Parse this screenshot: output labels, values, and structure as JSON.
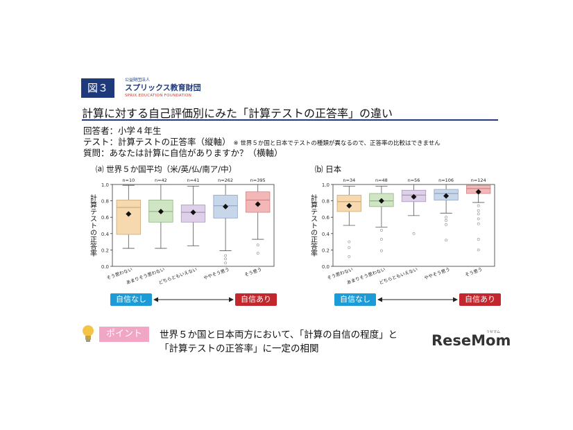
{
  "figure_badge": "図３",
  "org": {
    "small": "公益財団法人",
    "name": "スプリックス教育財団",
    "english": "SPRIX EDUCATION FOUNDATION"
  },
  "title": "計算に対する自己評価別にみた「計算テストの正答率」の違い",
  "meta": {
    "respondents": "回答者：小学４年生",
    "test": "テスト：計算テストの正答率（縦軸）",
    "test_note": "※ 世界５か国と日本でテストの種類が異なるので、正答率の比較はできません",
    "question": "質問：あなたは計算に自信がありますか？（横軸）"
  },
  "scale": {
    "low_label": "自信なし",
    "high_label": "自信あり"
  },
  "point": {
    "badge": "ポイント",
    "line1": "世界５か国と日本両方において、「計算の自信の程度」と",
    "line2": "「計算テストの正答率」に一定の相関"
  },
  "logo": {
    "text": "ReseMom",
    "sub": "リセマム"
  },
  "colors": {
    "navy": "#1f3a7a",
    "low": "#1d9bd6",
    "high": "#c1272d",
    "box_fills": [
      "#f7d9b0",
      "#cfe5c4",
      "#ddd0e8",
      "#c8d6ea",
      "#f3b7b7"
    ],
    "box_edges": [
      "#c9a87a",
      "#8fb382",
      "#a996bd",
      "#8ea3c4",
      "#cc8585"
    ]
  },
  "chart_data": [
    {
      "type": "box",
      "title": "⒜ 世界５か国平均（米/英/仏/南ア/中）",
      "ylabel": "計算テストの正答率",
      "ylim": [
        0,
        1.0
      ],
      "yticks": [
        "0.0",
        "0.2",
        "0.4",
        "0.6",
        "0.8",
        "1.0"
      ],
      "categories": [
        "そう思わない",
        "あまりそう思わない",
        "どちらともいえない",
        "ややそう思う",
        "そう思う"
      ],
      "n_labels": [
        "n=10",
        "n=42",
        "n=41",
        "n=262",
        "n=395"
      ],
      "boxes": [
        {
          "whislo": 0.22,
          "q1": 0.39,
          "med": 0.72,
          "q3": 0.81,
          "whishi": 0.99,
          "mean": 0.64,
          "fliers": []
        },
        {
          "whislo": 0.22,
          "q1": 0.54,
          "med": 0.67,
          "q3": 0.81,
          "whishi": 1.0,
          "mean": 0.67,
          "fliers": []
        },
        {
          "whislo": 0.25,
          "q1": 0.54,
          "med": 0.66,
          "q3": 0.75,
          "whishi": 0.98,
          "mean": 0.66,
          "fliers": []
        },
        {
          "whislo": 0.19,
          "q1": 0.59,
          "med": 0.74,
          "q3": 0.87,
          "whishi": 1.0,
          "mean": 0.73,
          "fliers": [
            0.04,
            0.09,
            0.13
          ]
        },
        {
          "whislo": 0.33,
          "q1": 0.66,
          "med": 0.81,
          "q3": 0.91,
          "whishi": 1.0,
          "mean": 0.76,
          "fliers": [
            0.16,
            0.26
          ]
        }
      ]
    },
    {
      "type": "box",
      "title": "⒝ 日本",
      "ylabel": "計算テストの正答率",
      "ylim": [
        0,
        1.0
      ],
      "yticks": [
        "0.0",
        "0.2",
        "0.4",
        "0.6",
        "0.8",
        "1.0"
      ],
      "categories": [
        "そう思わない",
        "あまりそう思わない",
        "どちらともいえない",
        "ややそう思う",
        "そう思う"
      ],
      "n_labels": [
        "n=34",
        "n=48",
        "n=56",
        "n=106",
        "n=124"
      ],
      "boxes": [
        {
          "whislo": 0.5,
          "q1": 0.67,
          "med": 0.79,
          "q3": 0.87,
          "whishi": 0.98,
          "mean": 0.74,
          "fliers": [
            0.12,
            0.23,
            0.3
          ]
        },
        {
          "whislo": 0.48,
          "q1": 0.73,
          "med": 0.8,
          "q3": 0.89,
          "whishi": 0.98,
          "mean": 0.8,
          "fliers": [
            0.19,
            0.33,
            0.44
          ]
        },
        {
          "whislo": 0.62,
          "q1": 0.79,
          "med": 0.87,
          "q3": 0.93,
          "whishi": 1.0,
          "mean": 0.85,
          "fliers": [
            0.4
          ]
        },
        {
          "whislo": 0.65,
          "q1": 0.81,
          "med": 0.89,
          "q3": 0.94,
          "whishi": 1.0,
          "mean": 0.86,
          "fliers": [
            0.32,
            0.51,
            0.56,
            0.6
          ]
        },
        {
          "whislo": 0.78,
          "q1": 0.89,
          "med": 0.95,
          "q3": 0.99,
          "whishi": 1.0,
          "mean": 0.91,
          "fliers": [
            0.2,
            0.33,
            0.52,
            0.58,
            0.64,
            0.68,
            0.74
          ]
        }
      ]
    }
  ]
}
